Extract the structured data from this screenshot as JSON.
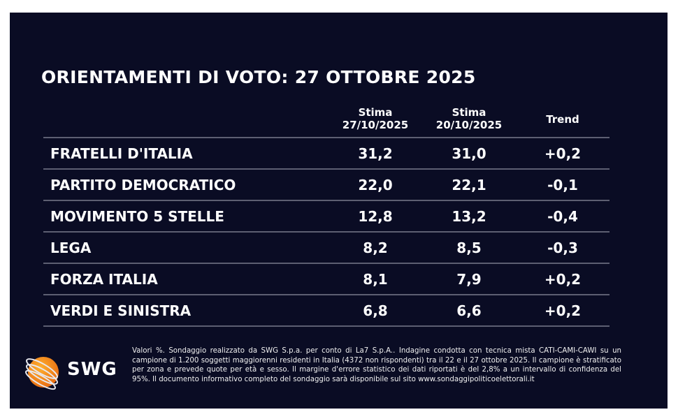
{
  "title": "ORIENTAMENTI DI VOTO: 27 OTTOBRE 2025",
  "headers": {
    "col1": {
      "line1": "Stima",
      "line2": "27/10/2025"
    },
    "col2": {
      "line1": "Stima",
      "line2": "20/10/2025"
    },
    "col3": "Trend"
  },
  "rows": [
    {
      "party": "FRATELLI D'ITALIA",
      "current": "31,2",
      "previous": "31,0",
      "trend": "+0,2"
    },
    {
      "party": "PARTITO DEMOCRATICO",
      "current": "22,0",
      "previous": "22,1",
      "trend": "-0,1"
    },
    {
      "party": "MOVIMENTO 5 STELLE",
      "current": "12,8",
      "previous": "13,2",
      "trend": "-0,4"
    },
    {
      "party": "LEGA",
      "current": "8,2",
      "previous": "8,5",
      "trend": "-0,3"
    },
    {
      "party": "FORZA ITALIA",
      "current": "8,1",
      "previous": "7,9",
      "trend": "+0,2"
    },
    {
      "party": "VERDI E SINISTRA",
      "current": "6,8",
      "previous": "6,6",
      "trend": "+0,2"
    }
  ],
  "logo": {
    "text": "SWG",
    "icon": "globe-icon",
    "color": "#f28a1a"
  },
  "footnote": "Valori %. Sondaggio realizzato da SWG S.p.a. per conto di La7 S.p.A.. Indagine condotta con tecnica mista CATI-CAMI-CAWI su un campione di 1.200 soggetti maggiorenni residenti in Italia (4372 non rispondenti) tra il 22 e il 27 ottobre 2025. Il campione è stratificato per zona e prevede quote per età e sesso. Il margine d'errore statistico dei dati riportati è del 2,8% a un intervallo di confidenza del 95%. Il documento informativo completo del sondaggio sarà disponibile sul sito www.sondaggipoliticoelettorali.it"
}
